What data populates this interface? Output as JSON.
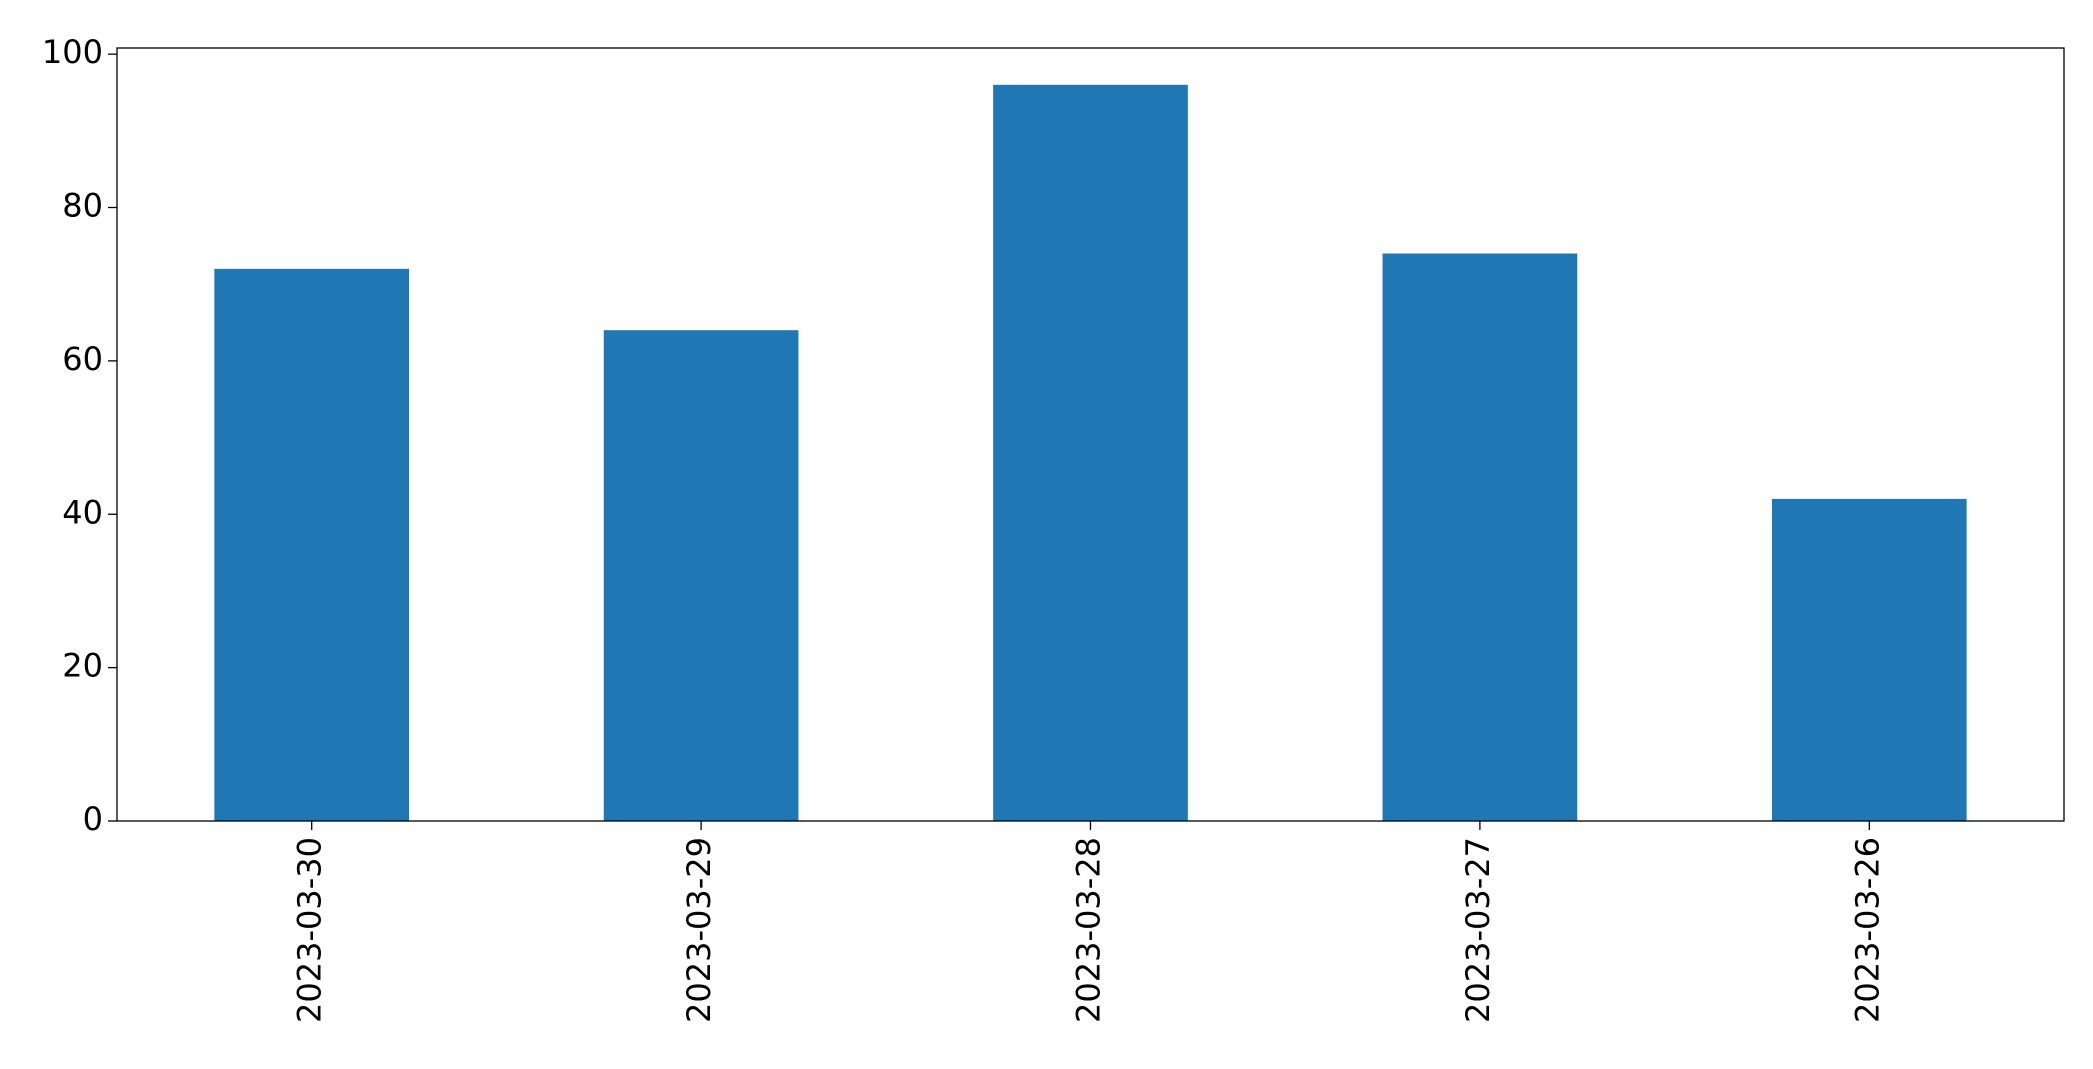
{
  "chart_data": {
    "type": "bar",
    "categories": [
      "2023-03-30",
      "2023-03-29",
      "2023-03-28",
      "2023-03-27",
      "2023-03-26"
    ],
    "values": [
      72,
      64,
      96,
      74,
      42
    ],
    "color": "#1f77b4",
    "ylim": [
      0,
      100.8
    ],
    "yticks": [
      0,
      20,
      40,
      60,
      80,
      100
    ],
    "grid": false
  }
}
